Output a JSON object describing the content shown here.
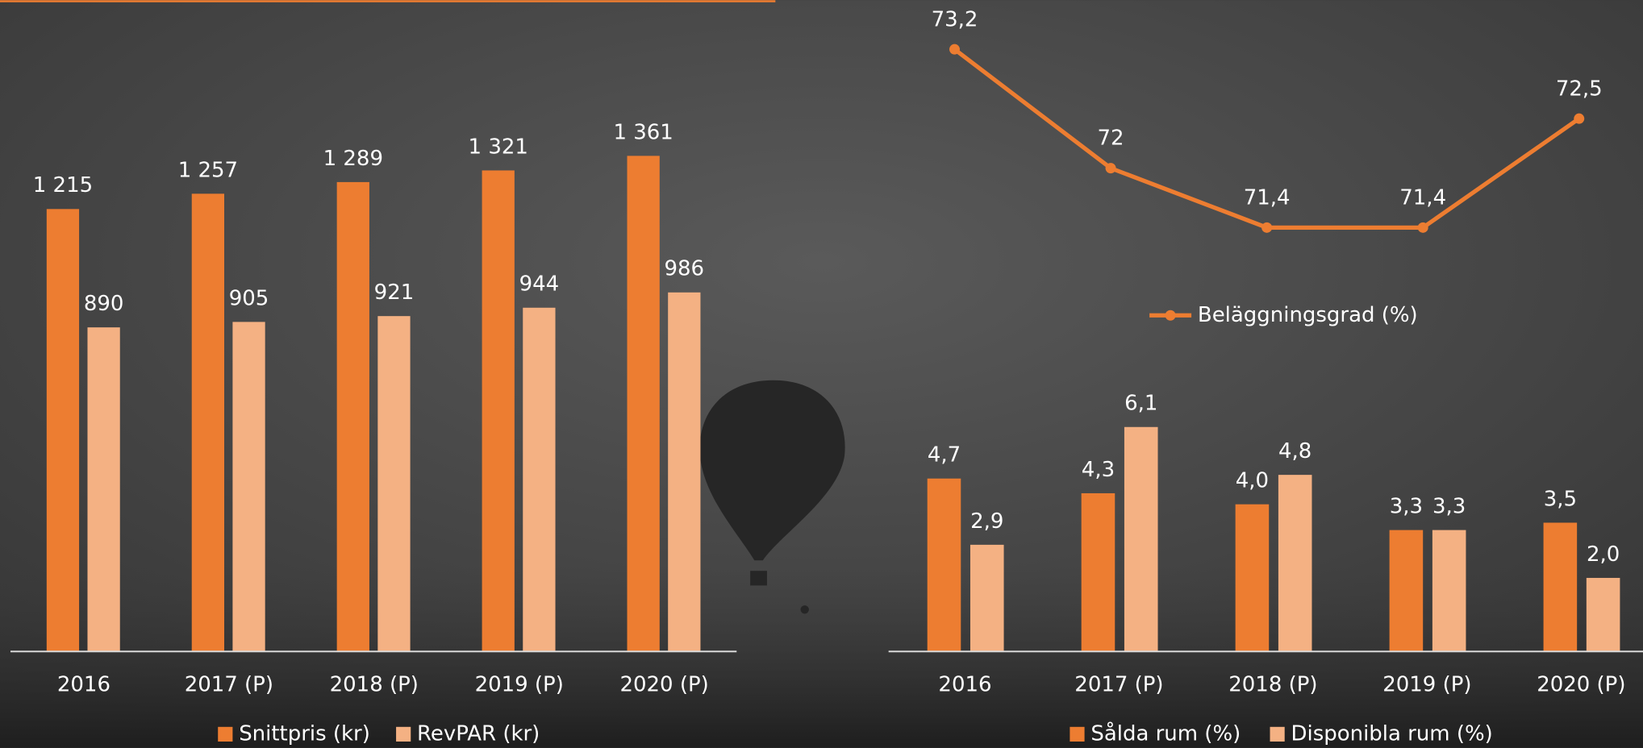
{
  "chart_data": [
    {
      "type": "bar",
      "categories": [
        "2016",
        "2017 (P)",
        "2018 (P)",
        "2019 (P)",
        "2020 (P)"
      ],
      "series": [
        {
          "name": "Snittpris (kr)",
          "color": "#ed7d31",
          "values": [
            1215,
            1257,
            1289,
            1321,
            1361
          ],
          "value_labels": [
            "1 215",
            "1 257",
            "1 289",
            "1 321",
            "1 361"
          ]
        },
        {
          "name": "RevPAR (kr)",
          "color": "#f4b183",
          "values": [
            890,
            905,
            921,
            944,
            986
          ]
        }
      ],
      "ylim": [
        0,
        1800
      ],
      "legend": "bottom"
    },
    {
      "type": "line",
      "series": [
        {
          "name": "Beläggningsgrad (%)",
          "color": "#ed7d31",
          "values": [
            73.2,
            72,
            71.4,
            71.4,
            72.5
          ],
          "value_labels": [
            "73,2",
            "72",
            "71,4",
            "71,4",
            "72,5"
          ]
        }
      ],
      "ylim": [
        71,
        73.4
      ],
      "legend": "bottom"
    },
    {
      "type": "bar",
      "categories": [
        "2016",
        "2017 (P)",
        "2018 (P)",
        "2019 (P)",
        "2020 (P)"
      ],
      "series": [
        {
          "name": "Sålda rum (%)",
          "color": "#ed7d31",
          "values": [
            4.7,
            4.3,
            4.0,
            3.3,
            3.5
          ],
          "value_labels": [
            "4,7",
            "4,3",
            "4,0",
            "3,3",
            "3,5"
          ]
        },
        {
          "name": "Disponibla rum (%)",
          "color": "#f4b183",
          "values": [
            2.9,
            6.1,
            4.8,
            3.3,
            2.0
          ],
          "value_labels": [
            "2,9",
            "6,1",
            "4,8",
            "3,3",
            "2,0"
          ]
        }
      ],
      "ylim": [
        0,
        7
      ],
      "legend": "bottom"
    }
  ]
}
